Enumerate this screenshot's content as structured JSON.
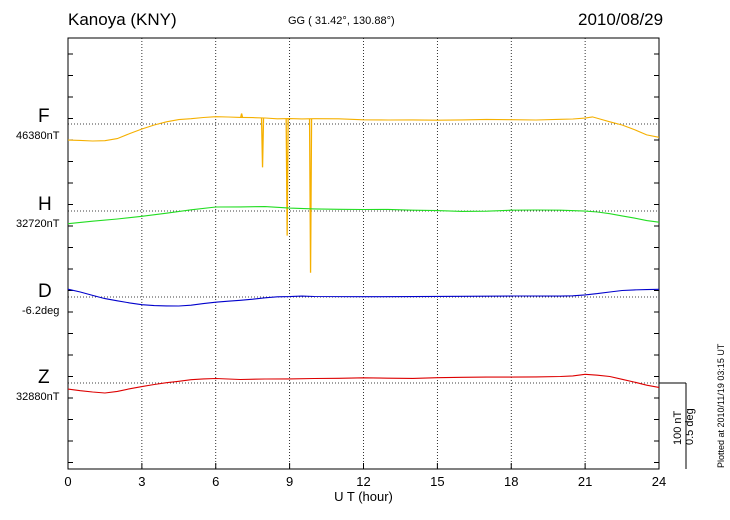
{
  "header": {
    "station": "Kanoya (KNY)",
    "coords": "GG ( 31.42°, 130.88°)",
    "date": "2010/08/29"
  },
  "plotted": "Plotted at 2010/11/19 03:15 UT",
  "scale_bar": {
    "line1": "100 nT",
    "line2": "0.5 deg"
  },
  "chart_data": {
    "type": "line",
    "xlabel": "U T (hour)",
    "xlim": [
      0,
      24
    ],
    "xticks": [
      0,
      3,
      6,
      9,
      12,
      15,
      18,
      21,
      24
    ],
    "grid": true,
    "series": [
      {
        "name": "F",
        "baseline_label": "46380nT",
        "color": "#f5b000",
        "x": [
          0,
          0.5,
          1,
          1.5,
          2,
          2.5,
          3,
          3.5,
          4,
          4.5,
          5,
          5.5,
          6,
          6.5,
          7,
          7.5,
          8,
          8.5,
          9,
          9.5,
          10,
          11,
          12,
          13,
          14,
          15,
          16,
          17,
          18,
          19,
          20,
          20.5,
          21,
          21.3,
          21.6,
          22,
          22.5,
          23,
          23.5,
          24
        ],
        "y": [
          -26,
          -27,
          -28,
          -27,
          -23,
          -15,
          -8,
          -2,
          3,
          7,
          9,
          11,
          12,
          11,
          10,
          10,
          10,
          9,
          9,
          8,
          8,
          8,
          7,
          7,
          7,
          6,
          6,
          7,
          7,
          7,
          8,
          8,
          9,
          11,
          8,
          4,
          -1,
          -9,
          -18,
          -22
        ],
        "spikes": [
          {
            "x": 7.05,
            "y": 17
          },
          {
            "x": 7.9,
            "y": -70
          },
          {
            "x": 8.9,
            "y": -180
          },
          {
            "x": 9.85,
            "y": -240
          }
        ]
      },
      {
        "name": "H",
        "baseline_label": "32720nT",
        "color": "#22dd22",
        "x": [
          0,
          1,
          2,
          3,
          4,
          5,
          6,
          7,
          8,
          9,
          10,
          11,
          12,
          13,
          14,
          15,
          16,
          17,
          18,
          19,
          20,
          21,
          21.5,
          22,
          22.5,
          23,
          23.5,
          24
        ],
        "y": [
          -21,
          -17,
          -13,
          -8,
          -3,
          2,
          6,
          6,
          7,
          5,
          4,
          3,
          2,
          2,
          1,
          1,
          0,
          0,
          1,
          1,
          1,
          0,
          -1,
          -4,
          -8,
          -12,
          -16,
          -18
        ]
      },
      {
        "name": "D",
        "baseline_label": "-6.2deg",
        "color": "#0000cc",
        "x": [
          0,
          0.5,
          1,
          1.5,
          2,
          2.5,
          3,
          3.5,
          4,
          4.5,
          5,
          5.5,
          6,
          6.5,
          7,
          7.5,
          8,
          8.5,
          9,
          9.5,
          10,
          12,
          14,
          16,
          18,
          20,
          20.5,
          21,
          21.5,
          22,
          22.5,
          23,
          23.5,
          24
        ],
        "y": [
          12,
          8,
          3,
          -2,
          -6,
          -10,
          -13,
          -14,
          -14,
          -14,
          -13,
          -11,
          -9,
          -7,
          -5,
          -3,
          -1,
          0,
          0,
          1,
          1,
          1,
          1,
          1,
          1,
          1,
          2,
          4,
          6,
          8,
          10,
          11,
          12,
          13
        ]
      },
      {
        "name": "Z",
        "baseline_label": "32880nT",
        "color": "#dd0000",
        "x": [
          0,
          0.5,
          1,
          1.5,
          2,
          2.5,
          3,
          3.5,
          4,
          4.5,
          5,
          5.5,
          6,
          7,
          8,
          9,
          10,
          11,
          12,
          13,
          14,
          15,
          16,
          17,
          18,
          19,
          20,
          20.5,
          21,
          21.5,
          22,
          22.5,
          23,
          23.5,
          24
        ],
        "y": [
          -10,
          -12,
          -14,
          -16,
          -14,
          -10,
          -6,
          -2,
          1,
          3,
          5,
          6,
          7,
          6,
          7,
          7,
          7,
          7,
          8,
          8,
          8,
          9,
          9,
          9,
          9,
          10,
          11,
          12,
          14,
          12,
          10,
          6,
          2,
          -3,
          -7
        ]
      }
    ]
  }
}
